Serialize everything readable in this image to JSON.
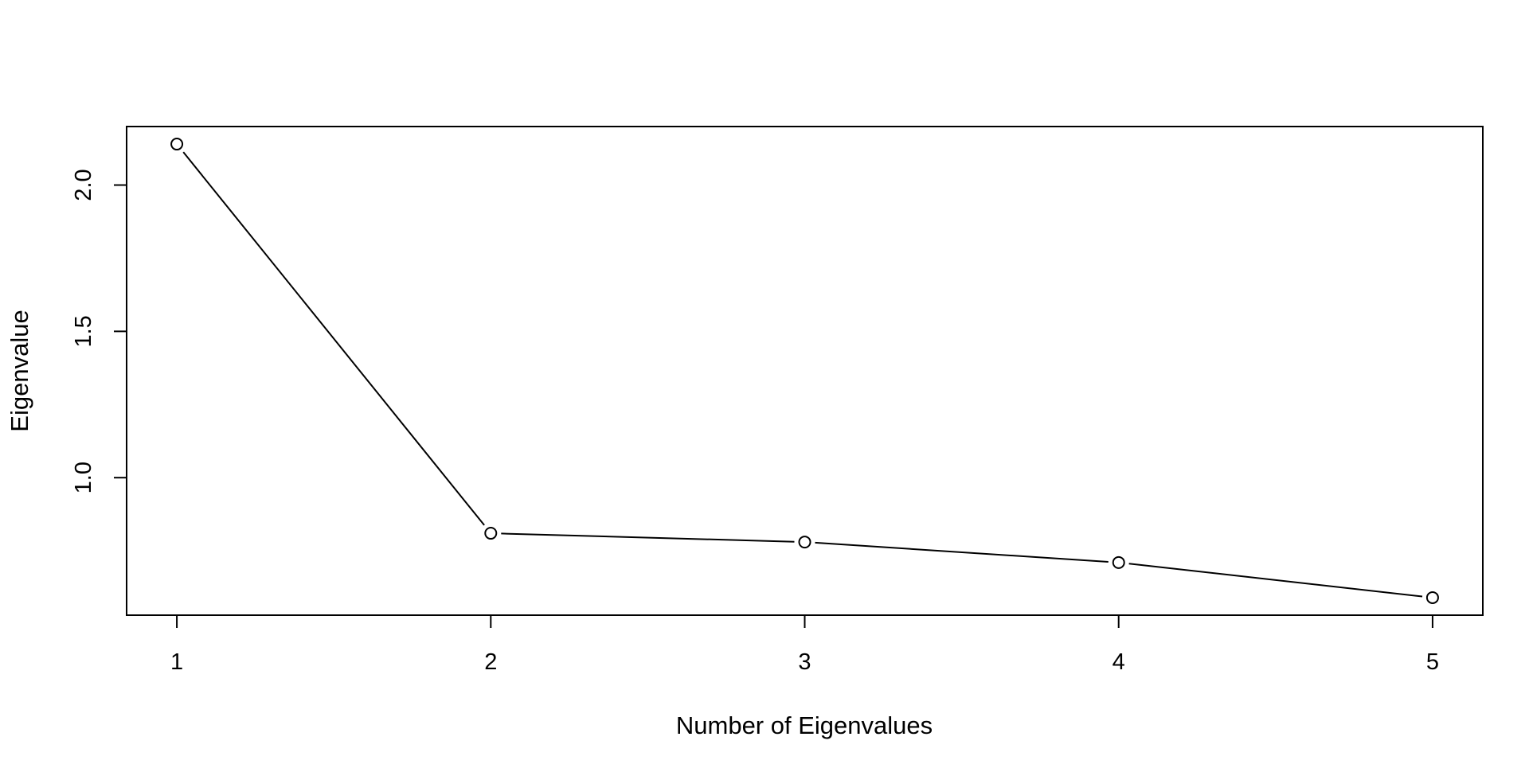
{
  "chart_data": {
    "type": "line",
    "title": "",
    "xlabel": "Number of Eigenvalues",
    "ylabel": "Eigenvalue",
    "x": [
      1,
      2,
      3,
      4,
      5
    ],
    "series": [
      {
        "values": [
          2.14,
          0.81,
          0.78,
          0.71,
          0.59
        ]
      }
    ],
    "xticks": [
      "1",
      "2",
      "3",
      "4",
      "5"
    ],
    "yticks": [
      "1.0",
      "1.5",
      "2.0"
    ],
    "xlim": [
      0.84,
      5.16
    ],
    "ylim": [
      0.53,
      2.2
    ],
    "grid": false,
    "legend": "none",
    "marker": "open-circle",
    "color": "#000000"
  }
}
